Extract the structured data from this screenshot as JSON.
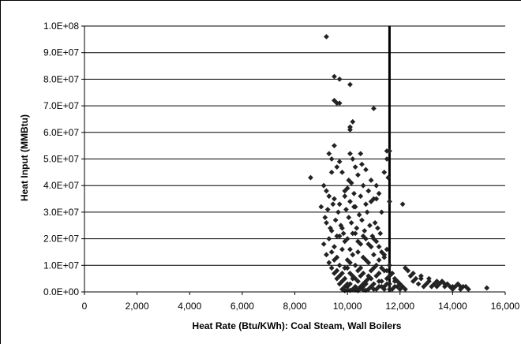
{
  "chart_data": {
    "type": "scatter",
    "xlabel": "Heat Rate (Btu/KWh):  Coal Steam, Wall Boilers",
    "ylabel": "Heat Input (MMBtu)",
    "xlim": [
      0,
      16000
    ],
    "ylim": [
      0,
      100000000
    ],
    "x_ticks": [
      0,
      2000,
      4000,
      6000,
      8000,
      10000,
      12000,
      14000,
      16000
    ],
    "x_tick_labels": [
      "0",
      "2,000",
      "4,000",
      "6,000",
      "8,000",
      "10,000",
      "12,000",
      "14,000",
      "16,000"
    ],
    "y_ticks": [
      0,
      10000000,
      20000000,
      30000000,
      40000000,
      50000000,
      60000000,
      70000000,
      80000000,
      90000000,
      100000000
    ],
    "y_tick_labels": [
      "0.0E+00",
      "1.0E+07",
      "2.0E+07",
      "3.0E+07",
      "4.0E+07",
      "5.0E+07",
      "6.0E+07",
      "7.0E+07",
      "8.0E+07",
      "9.0E+07",
      "1.0E+08"
    ],
    "grid": "horizontal",
    "reference_line_x": 11600,
    "marker_color": "#222222",
    "marker_shape": "diamond",
    "series": [
      {
        "x": [
          9200,
          9500,
          9700,
          10100,
          9500,
          9600,
          9700,
          10100,
          10100,
          10200,
          11000,
          11500,
          11600,
          8600,
          9000,
          9100,
          9200,
          9300,
          9400,
          9400,
          9500,
          9600,
          9700,
          9800,
          9900,
          10000,
          10050,
          10100,
          10150,
          10200,
          10250,
          10300,
          10400,
          10500,
          10550,
          10600,
          10700,
          10800,
          10900,
          11000,
          11100,
          11200,
          11300,
          11400,
          11500,
          11550,
          11600,
          12100,
          9150,
          9250,
          9350,
          9450,
          9550,
          9650,
          9750,
          9850,
          9950,
          10050,
          10150,
          10250,
          10350,
          10450,
          10550,
          10650,
          10750,
          10850,
          10950,
          11050,
          11150,
          11250,
          9100,
          9300,
          9500,
          9700,
          9900,
          10100,
          10300,
          10500,
          10700,
          10900,
          11100,
          11300,
          11500,
          9200,
          9400,
          9600,
          9800,
          10000,
          10200,
          10400,
          10600,
          10800,
          11000,
          11200,
          11400,
          11600,
          9300,
          9500,
          9700,
          9900,
          10100,
          10300,
          10500,
          10700,
          10900,
          11100,
          11300,
          11500,
          11700,
          9400,
          9600,
          9800,
          10000,
          10200,
          10400,
          10600,
          10800,
          11000,
          11200,
          11400,
          11600,
          11800,
          9500,
          9700,
          9900,
          10100,
          10300,
          10500,
          10700,
          10900,
          11100,
          11300,
          11500,
          11700,
          11900,
          9600,
          9800,
          10000,
          10200,
          10400,
          10600,
          10800,
          11000,
          11200,
          11400,
          11600,
          11800,
          12000,
          9700,
          9900,
          10100,
          10300,
          10500,
          10700,
          10900,
          11100,
          11300,
          11500,
          11700,
          11900,
          12100,
          9800,
          10000,
          10200,
          10400,
          10600,
          10800,
          11000,
          11200,
          11400,
          11600,
          11800,
          12000,
          12200,
          12300,
          12400,
          12500,
          12600,
          12700,
          12800,
          12900,
          13000,
          13100,
          13200,
          13300,
          13400,
          13500,
          13600,
          13700,
          13800,
          13900,
          14000,
          14100,
          14200,
          14300,
          14400,
          14500,
          15300,
          12200,
          12500,
          12800,
          13100,
          13400,
          13700,
          14000,
          14300,
          14600,
          9300,
          9500,
          9700,
          9900,
          10100,
          10300,
          10500,
          10700,
          10900,
          11100,
          9200,
          9400,
          9600,
          9800,
          10000,
          10200,
          10400,
          10600,
          10800,
          11000,
          11200,
          11400,
          9900,
          10000,
          10100,
          10200,
          10300,
          10400,
          10500,
          10600,
          10700,
          10800
        ],
        "y": [
          96000000,
          81000000,
          80000000,
          78000000,
          72000000,
          71000000,
          71000000,
          61000000,
          62000000,
          64000000,
          69000000,
          53000000,
          53000000,
          43000000,
          32000000,
          40000000,
          38000000,
          52000000,
          50000000,
          45000000,
          55000000,
          47000000,
          49000000,
          45000000,
          38000000,
          39000000,
          42000000,
          52000000,
          41000000,
          50000000,
          37000000,
          47000000,
          44000000,
          52000000,
          48000000,
          40000000,
          46000000,
          38000000,
          42000000,
          35000000,
          40000000,
          37000000,
          30000000,
          45000000,
          50000000,
          43000000,
          34000000,
          33000000,
          28000000,
          31000000,
          24000000,
          33000000,
          27000000,
          30000000,
          25000000,
          22000000,
          31000000,
          28000000,
          26000000,
          32000000,
          24000000,
          29000000,
          27000000,
          23000000,
          30000000,
          25000000,
          21000000,
          26000000,
          24000000,
          22000000,
          18000000,
          20000000,
          17000000,
          21000000,
          19000000,
          16000000,
          22000000,
          18000000,
          20000000,
          17000000,
          19000000,
          15000000,
          16000000,
          14000000,
          15000000,
          13000000,
          16000000,
          12000000,
          14000000,
          15000000,
          13000000,
          11000000,
          14000000,
          12000000,
          13000000,
          10000000,
          11000000,
          12000000,
          10000000,
          9000000,
          11000000,
          10000000,
          9000000,
          12000000,
          8000000,
          10000000,
          9000000,
          8000000,
          7000000,
          9000000,
          8000000,
          7000000,
          9000000,
          6000000,
          8000000,
          7000000,
          6000000,
          9000000,
          7000000,
          8000000,
          6000000,
          5000000,
          7000000,
          6000000,
          5000000,
          7000000,
          5000000,
          6000000,
          4000000,
          5000000,
          6000000,
          4000000,
          5000000,
          7000000,
          4000000,
          5000000,
          4000000,
          3000000,
          5000000,
          4000000,
          3000000,
          5000000,
          3000000,
          4000000,
          2000000,
          3000000,
          4000000,
          3000000,
          3000000,
          2000000,
          3000000,
          2000000,
          2000000,
          3000000,
          2000000,
          1000000,
          2000000,
          3000000,
          1000000,
          2000000,
          2000000,
          1000000,
          2000000,
          1000000,
          1000000,
          2000000,
          1000000,
          1000000,
          2000000,
          1000000,
          1000000,
          2000000,
          1000000,
          1000000,
          8000000,
          6000000,
          4000000,
          5000000,
          3000000,
          5000000,
          2000000,
          3000000,
          4000000,
          2000000,
          3000000,
          2000000,
          3000000,
          4000000,
          2000000,
          3000000,
          2000000,
          1000000,
          2000000,
          3000000,
          1000000,
          2000000,
          2000000,
          1500000,
          9000000,
          7000000,
          6000000,
          5000000,
          4000000,
          3000000,
          2000000,
          2000000,
          1000000,
          36000000,
          35000000,
          33000000,
          36000000,
          34000000,
          32000000,
          36000000,
          33000000,
          34000000,
          35000000,
          26000000,
          23000000,
          21000000,
          24000000,
          20000000,
          22000000,
          19000000,
          21000000,
          18000000,
          20000000,
          17000000,
          14000000,
          500000,
          800000,
          600000,
          900000,
          700000,
          500000,
          1200000,
          800000,
          600000,
          1000000
        ]
      }
    ]
  }
}
